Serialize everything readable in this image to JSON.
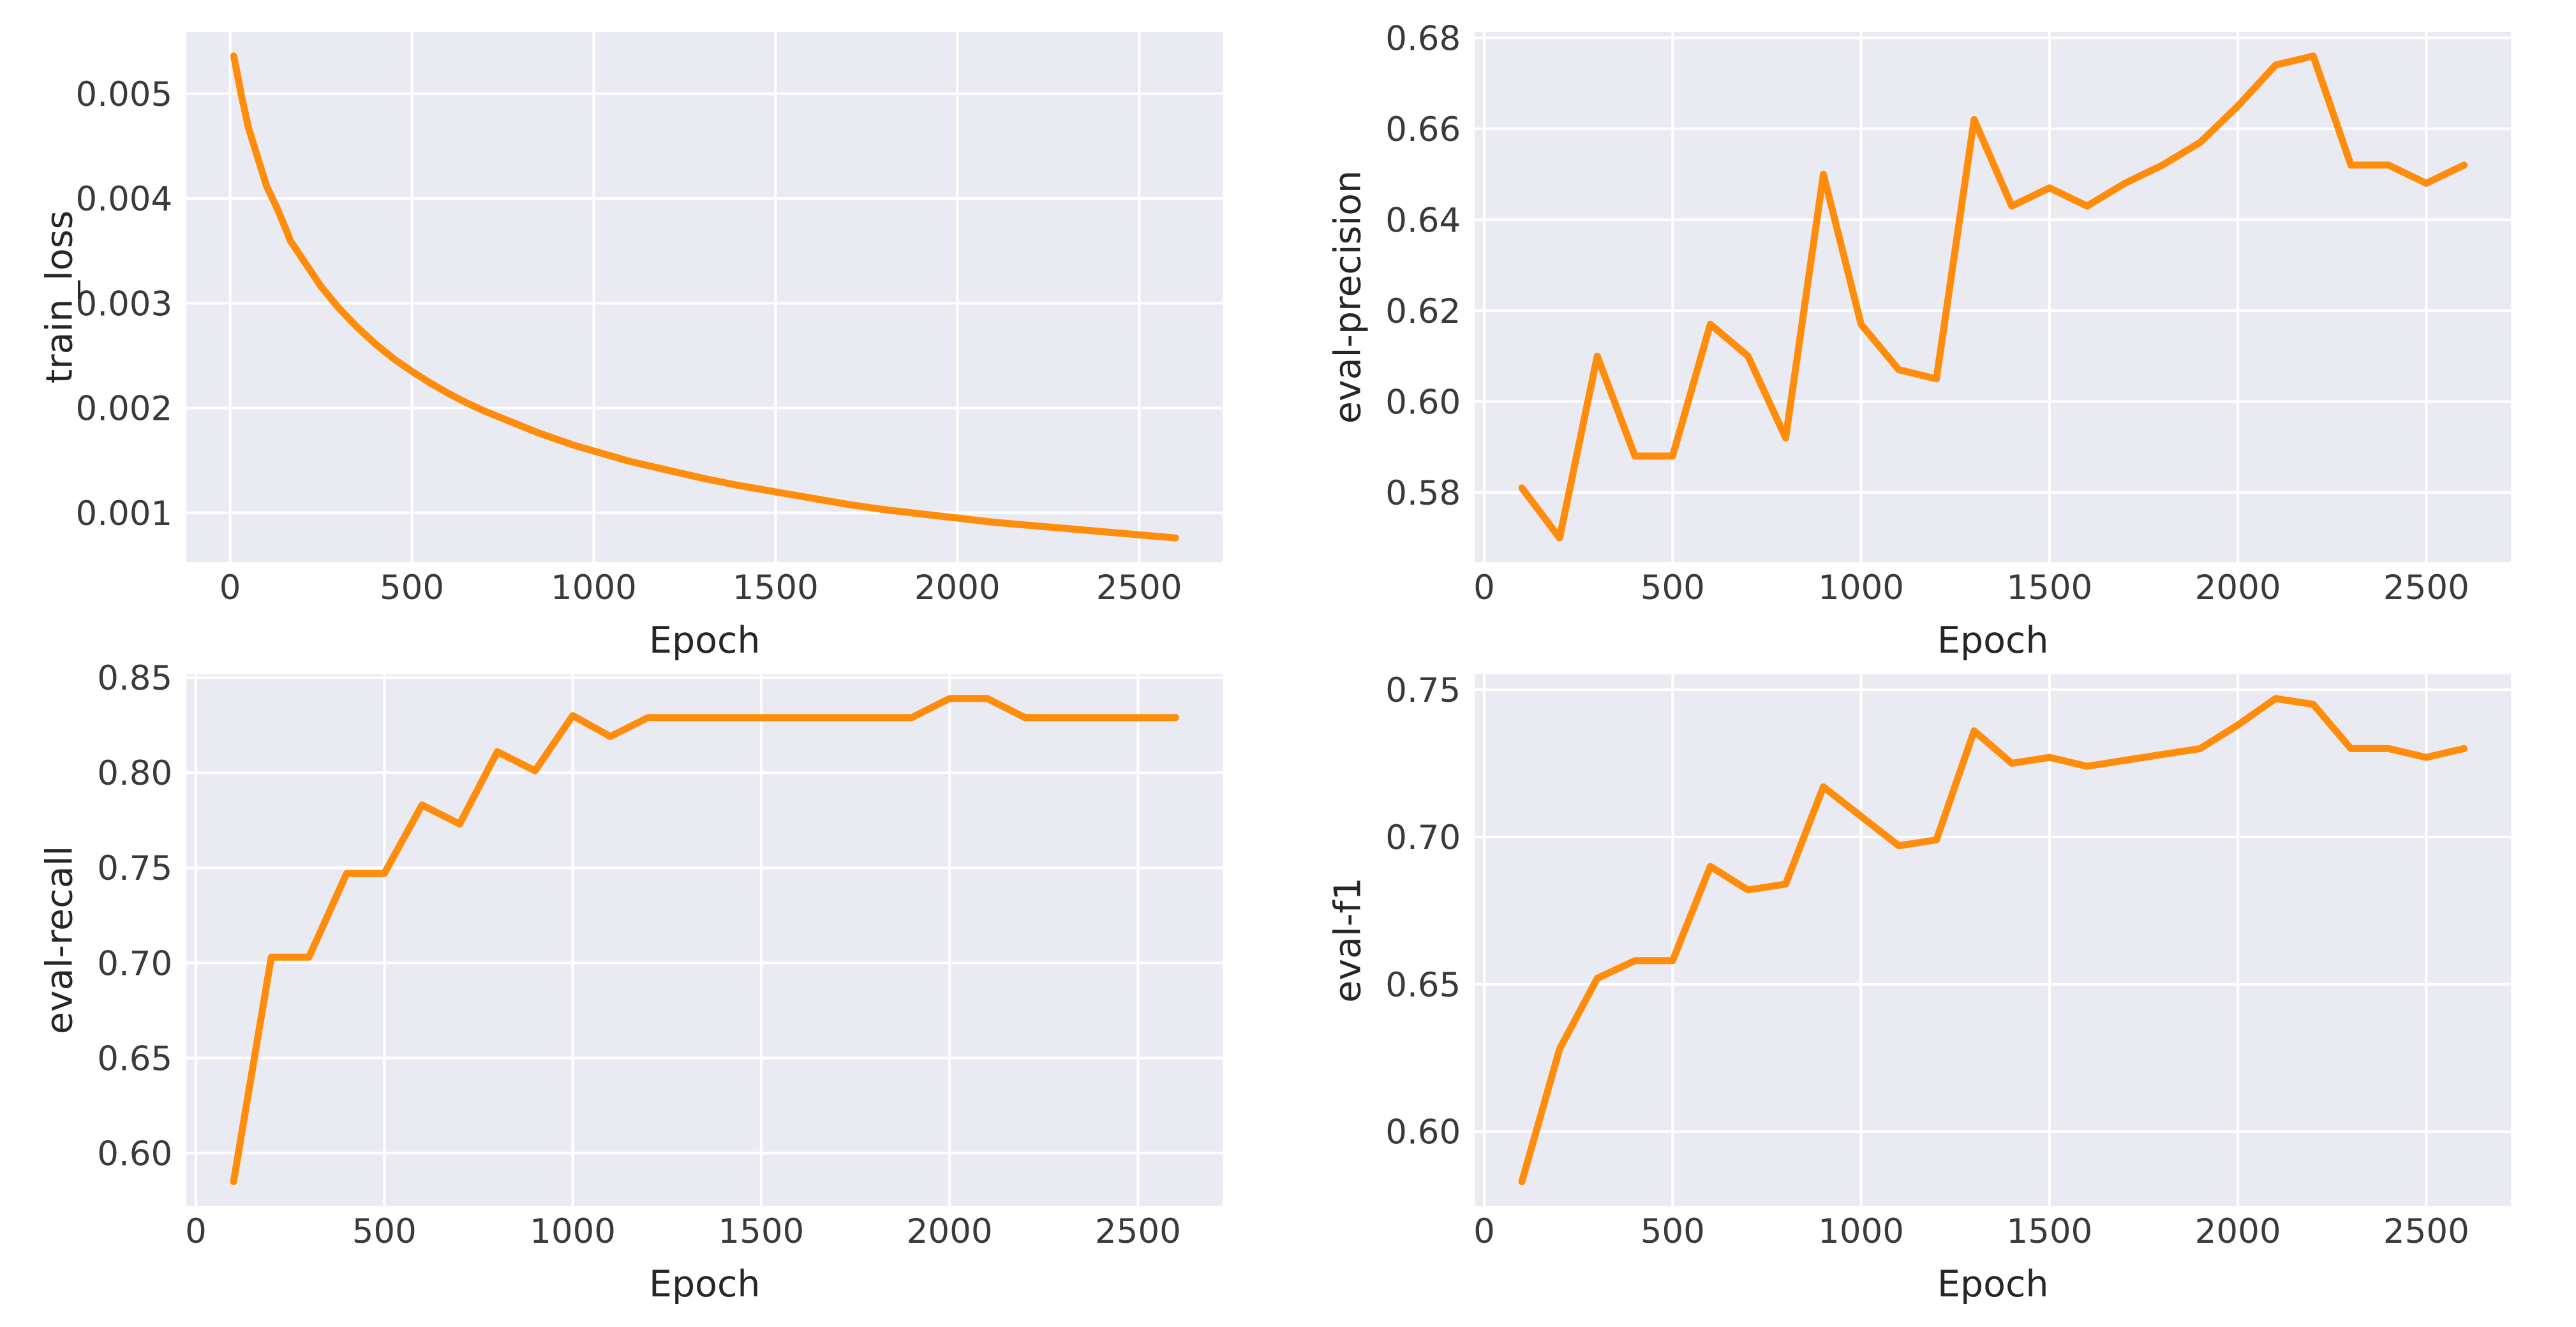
{
  "figure": {
    "background": "#ffffff",
    "axes_background": "#eaeaf2",
    "grid_color": "#ffffff",
    "line_color": "#ff8c0a",
    "tick_color": "#3a3a3a",
    "label_color": "#262626"
  },
  "chart_data": [
    {
      "type": "line",
      "position": "top-left",
      "title": "",
      "xlabel": "Epoch",
      "ylabel": "train_loss",
      "grid": true,
      "legend": false,
      "xlim": [
        -120,
        2730
      ],
      "ylim": [
        0.00053,
        0.00559
      ],
      "x_ticks": [
        0,
        500,
        1000,
        1500,
        2000,
        2500
      ],
      "x_tick_labels": [
        "0",
        "500",
        "1000",
        "1500",
        "2000",
        "2500"
      ],
      "y_ticks": [
        0.001,
        0.002,
        0.003,
        0.004,
        0.005
      ],
      "y_tick_labels": [
        "0.001",
        "0.002",
        "0.003",
        "0.004",
        "0.005"
      ],
      "series": [
        {
          "name": "train_loss",
          "x": [
            10,
            30,
            50,
            75,
            100,
            130,
            160,
            165,
            200,
            250,
            300,
            350,
            400,
            450,
            500,
            550,
            600,
            650,
            700,
            750,
            800,
            850,
            900,
            950,
            1000,
            1100,
            1200,
            1300,
            1400,
            1500,
            1600,
            1700,
            1800,
            1900,
            2000,
            2100,
            2200,
            2300,
            2400,
            2500,
            2600
          ],
          "y": [
            0.00536,
            0.005,
            0.00468,
            0.0044,
            0.00412,
            0.0039,
            0.00365,
            0.0036,
            0.00342,
            0.00316,
            0.00295,
            0.00277,
            0.00261,
            0.00247,
            0.00235,
            0.00224,
            0.00214,
            0.00205,
            0.00197,
            0.0019,
            0.00183,
            0.00176,
            0.0017,
            0.00164,
            0.00159,
            0.00149,
            0.00141,
            0.00133,
            0.00126,
            0.0012,
            0.00114,
            0.00108,
            0.00103,
            0.00099,
            0.00095,
            0.00091,
            0.00088,
            0.00085,
            0.00082,
            0.00079,
            0.00076
          ]
        }
      ]
    },
    {
      "type": "line",
      "position": "top-right",
      "title": "",
      "xlabel": "Epoch",
      "ylabel": "eval-precision",
      "grid": true,
      "legend": false,
      "xlim": [
        -25,
        2725
      ],
      "ylim": [
        0.5647,
        0.6813
      ],
      "x_ticks": [
        0,
        500,
        1000,
        1500,
        2000,
        2500
      ],
      "x_tick_labels": [
        "0",
        "500",
        "1000",
        "1500",
        "2000",
        "2500"
      ],
      "y_ticks": [
        0.58,
        0.6,
        0.62,
        0.64,
        0.66,
        0.68
      ],
      "y_tick_labels": [
        "0.58",
        "0.60",
        "0.62",
        "0.64",
        "0.66",
        "0.68"
      ],
      "series": [
        {
          "name": "eval-precision",
          "x": [
            100,
            200,
            300,
            400,
            500,
            600,
            700,
            800,
            900,
            1000,
            1100,
            1200,
            1300,
            1400,
            1500,
            1600,
            1700,
            1800,
            1900,
            2000,
            2100,
            2200,
            2300,
            2400,
            2500,
            2600
          ],
          "y": [
            0.581,
            0.57,
            0.61,
            0.588,
            0.588,
            0.617,
            0.61,
            0.592,
            0.65,
            0.617,
            0.607,
            0.605,
            0.662,
            0.643,
            0.647,
            0.643,
            0.648,
            0.652,
            0.657,
            0.665,
            0.674,
            0.676,
            0.652,
            0.652,
            0.648,
            0.652
          ]
        }
      ]
    },
    {
      "type": "line",
      "position": "bottom-left",
      "title": "",
      "xlabel": "Epoch",
      "ylabel": "eval-recall",
      "grid": true,
      "legend": false,
      "xlim": [
        -25,
        2725
      ],
      "ylim": [
        0.5723,
        0.8517
      ],
      "x_ticks": [
        0,
        500,
        1000,
        1500,
        2000,
        2500
      ],
      "x_tick_labels": [
        "0",
        "500",
        "1000",
        "1500",
        "2000",
        "2500"
      ],
      "y_ticks": [
        0.6,
        0.65,
        0.7,
        0.75,
        0.8,
        0.85
      ],
      "y_tick_labels": [
        "0.60",
        "0.65",
        "0.70",
        "0.75",
        "0.80",
        "0.85"
      ],
      "series": [
        {
          "name": "eval-recall",
          "x": [
            100,
            200,
            300,
            400,
            500,
            600,
            700,
            800,
            900,
            1000,
            1100,
            1200,
            1300,
            1400,
            1500,
            1600,
            1700,
            1800,
            1900,
            2000,
            2100,
            2200,
            2300,
            2400,
            2500,
            2600
          ],
          "y": [
            0.585,
            0.703,
            0.703,
            0.747,
            0.747,
            0.783,
            0.773,
            0.811,
            0.801,
            0.83,
            0.819,
            0.829,
            0.829,
            0.829,
            0.829,
            0.829,
            0.829,
            0.829,
            0.829,
            0.839,
            0.839,
            0.829,
            0.829,
            0.829,
            0.829,
            0.829
          ]
        }
      ]
    },
    {
      "type": "line",
      "position": "bottom-right",
      "title": "",
      "xlabel": "Epoch",
      "ylabel": "eval-f1",
      "grid": true,
      "legend": false,
      "xlim": [
        -25,
        2725
      ],
      "ylim": [
        0.5748,
        0.7552
      ],
      "x_ticks": [
        0,
        500,
        1000,
        1500,
        2000,
        2500
      ],
      "x_tick_labels": [
        "0",
        "500",
        "1000",
        "1500",
        "2000",
        "2500"
      ],
      "y_ticks": [
        0.6,
        0.65,
        0.7,
        0.75
      ],
      "y_tick_labels": [
        "0.60",
        "0.65",
        "0.70",
        "0.75"
      ],
      "series": [
        {
          "name": "eval-f1",
          "x": [
            100,
            200,
            300,
            400,
            500,
            600,
            700,
            800,
            900,
            1000,
            1100,
            1200,
            1300,
            1400,
            1500,
            1600,
            1700,
            1800,
            1900,
            2000,
            2100,
            2200,
            2300,
            2400,
            2500,
            2600
          ],
          "y": [
            0.583,
            0.628,
            0.652,
            0.658,
            0.658,
            0.69,
            0.682,
            0.684,
            0.717,
            0.707,
            0.697,
            0.699,
            0.736,
            0.725,
            0.727,
            0.724,
            0.726,
            0.728,
            0.73,
            0.738,
            0.747,
            0.745,
            0.73,
            0.73,
            0.727,
            0.73
          ]
        }
      ]
    }
  ]
}
